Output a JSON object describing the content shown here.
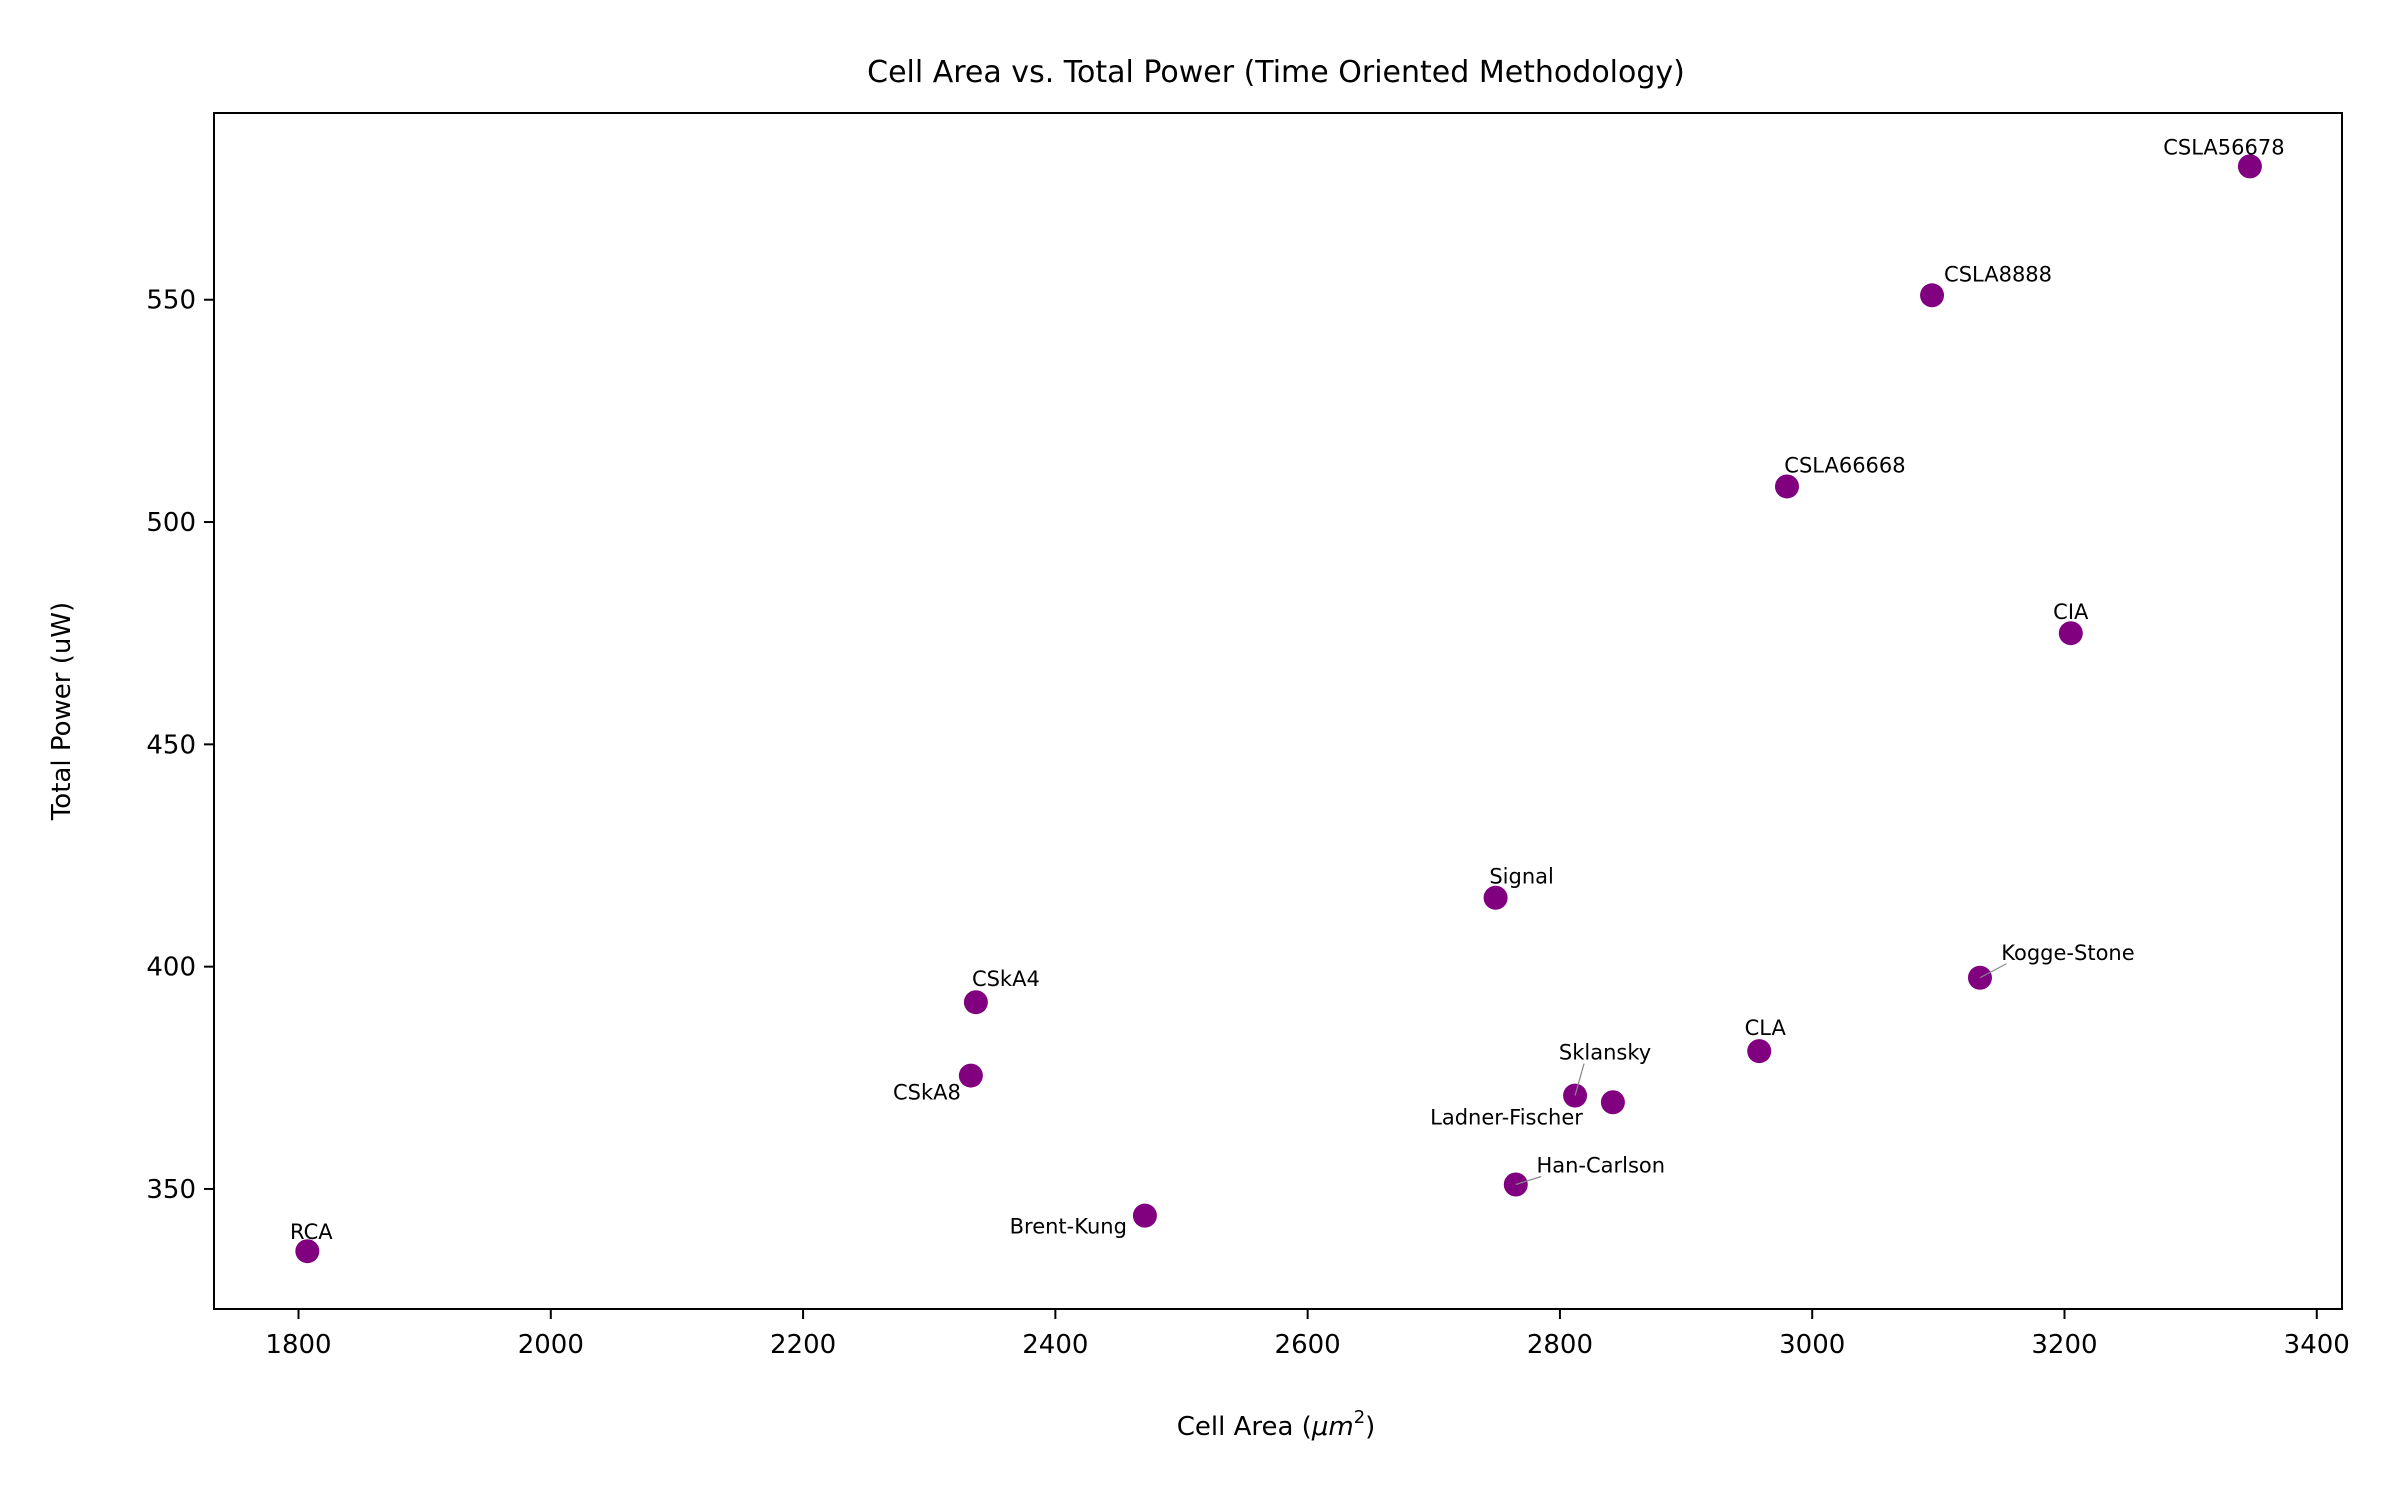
{
  "chart_data": {
    "type": "scatter",
    "title": "Cell Area vs. Total Power (Time Oriented Methodology)",
    "xlabel": "Cell Area (μm²)",
    "xlabel_main": "Cell Area (",
    "xlabel_mu": "μm",
    "xlabel_sup": "2",
    "xlabel_close": ")",
    "ylabel": "Total Power (uW)",
    "xlim": [
      1733,
      3420
    ],
    "ylim": [
      323,
      592
    ],
    "xticks": [
      1800,
      2000,
      2200,
      2400,
      2600,
      2800,
      3000,
      3200,
      3400
    ],
    "yticks": [
      350,
      400,
      450,
      500,
      550
    ],
    "grid": false,
    "marker_color": "#800080",
    "points": [
      {
        "label": "RCA",
        "x": 1807,
        "y": 336
      },
      {
        "label": "Brent-Kung",
        "x": 2471,
        "y": 344
      },
      {
        "label": "CSkA8",
        "x": 2333,
        "y": 375.5
      },
      {
        "label": "CSkA4",
        "x": 2337,
        "y": 392
      },
      {
        "label": "Signal",
        "x": 2749,
        "y": 415.5
      },
      {
        "label": "Han-Carlson",
        "x": 2765,
        "y": 351
      },
      {
        "label": "Sklansky",
        "x": 2812,
        "y": 371
      },
      {
        "label": "Ladner-Fischer",
        "x": 2842,
        "y": 369.5
      },
      {
        "label": "CLA",
        "x": 2958,
        "y": 381
      },
      {
        "label": "CSLA66668",
        "x": 2980,
        "y": 508
      },
      {
        "label": "CSLA8888",
        "x": 3095,
        "y": 551
      },
      {
        "label": "Kogge-Stone",
        "x": 3133,
        "y": 397.5
      },
      {
        "label": "CIA",
        "x": 3205,
        "y": 475
      },
      {
        "label": "CSLA56678",
        "x": 3347,
        "y": 580
      }
    ]
  }
}
